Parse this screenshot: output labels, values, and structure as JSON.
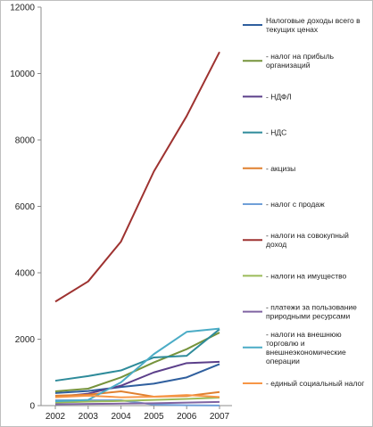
{
  "chart_data": {
    "type": "line",
    "title": "",
    "xlabel": "",
    "ylabel": "",
    "x": [
      "2002",
      "2003",
      "2004",
      "2005",
      "2006",
      "2007"
    ],
    "ylim": [
      0,
      12000
    ],
    "yticks": [
      0,
      2000,
      4000,
      6000,
      8000,
      10000,
      12000
    ],
    "grid": false,
    "legend_position": "right",
    "series": [
      {
        "name": "Налоговые доходы всего в текущих ценах",
        "color": "#2f5f9e",
        "values": [
          380,
          440,
          560,
          660,
          850,
          1250
        ]
      },
      {
        "name": "- налог на прибыль организаций",
        "color": "#76933c",
        "values": [
          430,
          510,
          850,
          1300,
          1700,
          2200
        ]
      },
      {
        "name": "- НДФЛ",
        "color": "#5b3f8a",
        "values": [
          260,
          360,
          600,
          1000,
          1280,
          1320
        ]
      },
      {
        "name": "- НДС",
        "color": "#2e8b9a",
        "values": [
          750,
          890,
          1060,
          1450,
          1500,
          2300
        ]
      },
      {
        "name": "- акцизы",
        "color": "#e0802f",
        "values": [
          300,
          330,
          430,
          270,
          290,
          410
        ]
      },
      {
        "name": "- налог с продаж",
        "color": "#6f9fd8",
        "values": [
          160,
          160,
          160,
          30,
          10,
          5
        ]
      },
      {
        "name": "- налоги на совокупный доход",
        "color": "#9e3230",
        "values": [
          3130,
          3740,
          4940,
          7050,
          8720,
          10650
        ]
      },
      {
        "name": "- налоги на имущество",
        "color": "#9bbb59",
        "values": [
          90,
          120,
          140,
          170,
          200,
          240
        ]
      },
      {
        "name": "- платежи за пользование природными ресурсами",
        "color": "#8064a2",
        "values": [
          40,
          50,
          60,
          70,
          90,
          110
        ]
      },
      {
        "name": "- налоги на внешнюю торговлю и внешнеэкономические операции",
        "color": "#4bacc6",
        "values": [
          130,
          170,
          700,
          1550,
          2220,
          2320
        ]
      },
      {
        "name": "- единый социальный налог",
        "color": "#f79646",
        "values": [
          250,
          300,
          250,
          270,
          320,
          260
        ]
      }
    ]
  }
}
